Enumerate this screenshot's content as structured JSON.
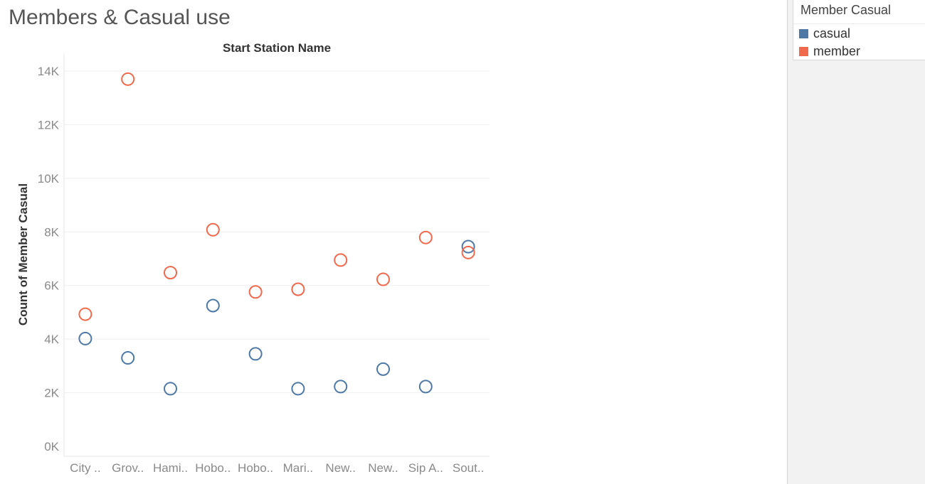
{
  "page": {
    "title": "Members & Casual use"
  },
  "legend": {
    "title": "Member Casual",
    "items": [
      {
        "label": "casual",
        "color": "#4e79a7"
      },
      {
        "label": "member",
        "color": "#f1694c"
      }
    ]
  },
  "chart_data": {
    "type": "scatter",
    "title": "Start Station Name",
    "xlabel": "Start Station Name",
    "ylabel": "Count of Member Casual",
    "categories": [
      "City ..",
      "Grov..",
      "Hami..",
      "Hobo..",
      "Hobo..",
      "Mari..",
      "New..",
      "New..",
      "Sip A..",
      "Sout.."
    ],
    "ylim": [
      0,
      14500
    ],
    "yticks": [
      0,
      2000,
      4000,
      6000,
      8000,
      10000,
      12000,
      14000
    ],
    "ytick_labels": [
      "0K",
      "2K",
      "4K",
      "6K",
      "8K",
      "10K",
      "12K",
      "14K"
    ],
    "grid": true,
    "legend_position": "top-right",
    "series": [
      {
        "name": "casual",
        "color": "#4e79a7",
        "marker": "hollow-circle",
        "values": [
          4020,
          3300,
          2150,
          5250,
          3450,
          2150,
          2230,
          2880,
          2230,
          7450
        ]
      },
      {
        "name": "member",
        "color": "#f1694c",
        "marker": "hollow-circle",
        "values": [
          4930,
          13700,
          6480,
          8080,
          5760,
          5860,
          6950,
          6230,
          7790,
          7230
        ]
      }
    ]
  }
}
